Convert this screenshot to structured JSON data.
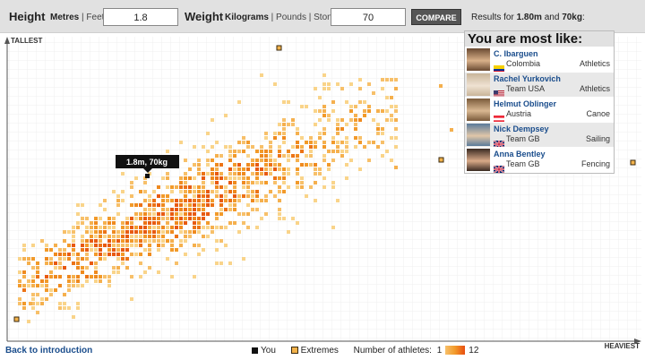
{
  "controls": {
    "height_label": "Height",
    "height_units": "Metres | Feet",
    "height_unit_selected": "Metres",
    "height_value": "1.8",
    "weight_label": "Weight",
    "weight_units_selected": "Kilograms",
    "weight_units_rest": " | Pounds | Stone",
    "weight_value": "70",
    "compare_label": "COMPARE",
    "results_prefix": "Results for ",
    "results_height": "1.80m",
    "results_and": " and ",
    "results_weight": "70kg",
    "results_suffix": ":"
  },
  "axes": {
    "y_label": "TALLEST",
    "x_label": "HEAVIEST"
  },
  "marker": {
    "label": "1.8m, 70kg"
  },
  "most_like": {
    "title": "You are most like:",
    "athletes": [
      {
        "name": "C. Ibarguen",
        "country": "Colombia",
        "sport": "Athletics",
        "flag": "colombia"
      },
      {
        "name": "Rachel Yurkovich",
        "country": "Team USA",
        "sport": "Athletics",
        "flag": "usa"
      },
      {
        "name": "Helmut Oblinger",
        "country": "Austria",
        "sport": "Canoe",
        "flag": "austria"
      },
      {
        "name": "Nick Dempsey",
        "country": "Team GB",
        "sport": "Sailing",
        "flag": "gb"
      },
      {
        "name": "Anna Bentley",
        "country": "Team GB",
        "sport": "Fencing",
        "flag": "gb"
      }
    ]
  },
  "footer": {
    "back_link": "Back to introduction",
    "you_label": "You",
    "extremes_label": "Extremes",
    "count_label": "Number of athletes:",
    "count_min": "1",
    "count_max": "12"
  },
  "colors": {
    "low": "#f7c06a",
    "mid": "#f29a2a",
    "high": "#e84e10",
    "extreme_fill": "#f2b24a",
    "extreme_border": "#3a2a10"
  },
  "chart_data": {
    "type": "scatter",
    "x_axis_direction": "heavier to the right",
    "y_axis_direction": "taller upward",
    "grid": true,
    "highlight_point": {
      "height_m": 1.8,
      "weight_kg": 70
    }
  }
}
